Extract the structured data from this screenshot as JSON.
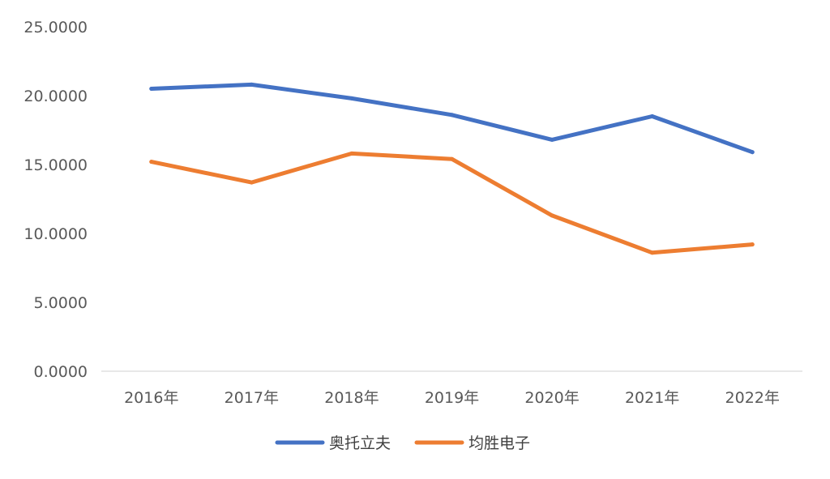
{
  "chart_data": {
    "type": "line",
    "categories": [
      "2016年",
      "2017年",
      "2018年",
      "2019年",
      "2020年",
      "2021年",
      "2022年"
    ],
    "series": [
      {
        "name": "奥托立夫",
        "color": "#4472C4",
        "values": [
          20.5,
          20.8,
          19.8,
          18.6,
          16.8,
          18.5,
          15.9
        ]
      },
      {
        "name": "均胜电子",
        "color": "#ED7D31",
        "values": [
          15.2,
          13.7,
          15.8,
          15.4,
          11.3,
          8.6,
          9.2
        ]
      }
    ],
    "yticks": [
      "0.0000",
      "5.0000",
      "10.0000",
      "15.0000",
      "20.0000",
      "25.0000"
    ],
    "ylim": [
      0,
      25
    ],
    "legend_position": "bottom",
    "grid": false
  }
}
